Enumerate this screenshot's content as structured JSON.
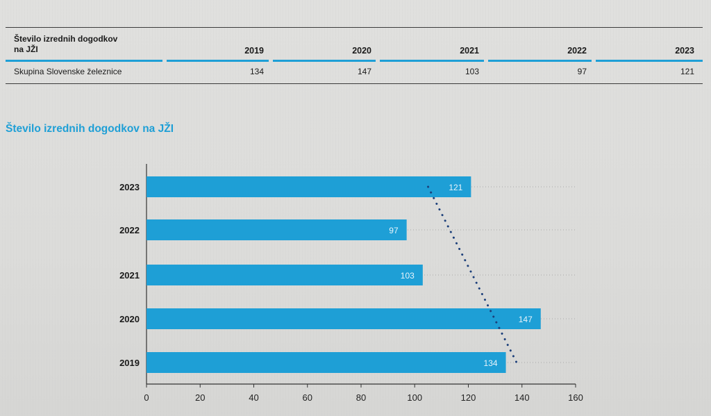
{
  "table": {
    "header_label_line1": "Število izrednih dogodkov",
    "header_label_line2": "na JŽI",
    "years": [
      "2019",
      "2020",
      "2021",
      "2022",
      "2023"
    ],
    "row_label": "Skupina Slovenske železnice",
    "values": [
      "134",
      "147",
      "103",
      "97",
      "121"
    ]
  },
  "chart_title": "Število izrednih dogodkov na JŽI",
  "colors": {
    "bar": "#1e9fd6",
    "accent_blue": "#1e9fd6",
    "trendline": "#1c3f7a",
    "axis": "#333333"
  },
  "chart_data": {
    "type": "bar",
    "orientation": "horizontal",
    "title": "Število izrednih dogodkov na JŽI",
    "categories": [
      "2023",
      "2022",
      "2021",
      "2020",
      "2019"
    ],
    "values": [
      121,
      97,
      103,
      147,
      134
    ],
    "data_labels": [
      "121",
      "97",
      "103",
      "147",
      "134"
    ],
    "xlim": [
      0,
      160
    ],
    "xticks": [
      0,
      20,
      40,
      60,
      80,
      100,
      120,
      140,
      160
    ],
    "xtick_labels": [
      "0",
      "20",
      "40",
      "60",
      "80",
      "100",
      "120",
      "140",
      "160"
    ],
    "trendline": {
      "style": "dotted",
      "from": [
        105,
        "2023"
      ],
      "to": [
        138,
        "2019"
      ]
    },
    "grid": "horizontal dotted guides",
    "xlabel": "",
    "ylabel": ""
  }
}
